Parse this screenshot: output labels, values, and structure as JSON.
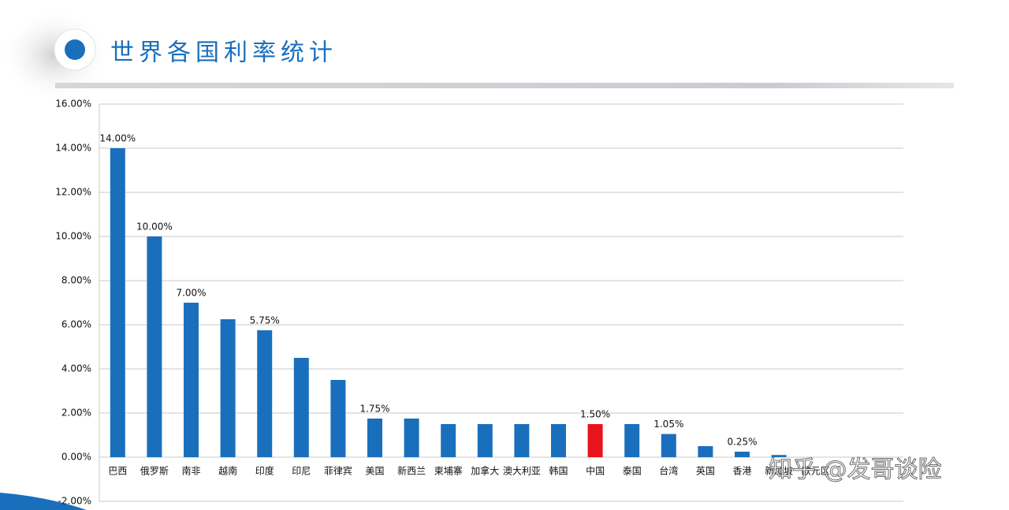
{
  "chart_data": {
    "type": "bar",
    "title": "世界各国利率统计",
    "categories": [
      "巴西",
      "俄罗斯",
      "南非",
      "越南",
      "印度",
      "印尼",
      "菲律宾",
      "美国",
      "新西兰",
      "柬埔寨",
      "加拿大",
      "澳大利亚",
      "韩国",
      "中国",
      "泰国",
      "台湾",
      "英国",
      "香港",
      "新加坡",
      "欧元区"
    ],
    "values": [
      14,
      10,
      7,
      6.25,
      5.75,
      4.5,
      3.5,
      1.75,
      1.75,
      1.5,
      1.5,
      1.5,
      1.5,
      1.5,
      1.5,
      1.05,
      0.5,
      0.25,
      0.1,
      0
    ],
    "value_labels": [
      "14.00%",
      "10.00%",
      "7.00%",
      null,
      "5.75%",
      null,
      null,
      "1.75%",
      null,
      null,
      null,
      null,
      null,
      "1.50%",
      null,
      "1.05%",
      null,
      "0.25%",
      null,
      null
    ],
    "colors": [
      "#1a6fbd",
      "#1a6fbd",
      "#1a6fbd",
      "#1a6fbd",
      "#1a6fbd",
      "#1a6fbd",
      "#1a6fbd",
      "#1a6fbd",
      "#1a6fbd",
      "#1a6fbd",
      "#1a6fbd",
      "#1a6fbd",
      "#1a6fbd",
      "#e8141b",
      "#1a6fbd",
      "#1a6fbd",
      "#1a6fbd",
      "#1a6fbd",
      "#1a6fbd",
      "#1a6fbd"
    ],
    "ylim": [
      -2,
      16
    ],
    "yticks": [
      {
        "value": -2,
        "label": "-2.00%"
      },
      {
        "value": 0,
        "label": "0.00%"
      },
      {
        "value": 2,
        "label": "2.00%"
      },
      {
        "value": 4,
        "label": "4.00%"
      },
      {
        "value": 6,
        "label": "6.00%"
      },
      {
        "value": 8,
        "label": "8.00%"
      },
      {
        "value": 10,
        "label": "10.00%"
      },
      {
        "value": 12,
        "label": "12.00%"
      },
      {
        "value": 14,
        "label": "14.00%"
      },
      {
        "value": 16,
        "label": "16.00%"
      }
    ],
    "grid": true,
    "watermark": "知乎 @发哥谈险"
  }
}
